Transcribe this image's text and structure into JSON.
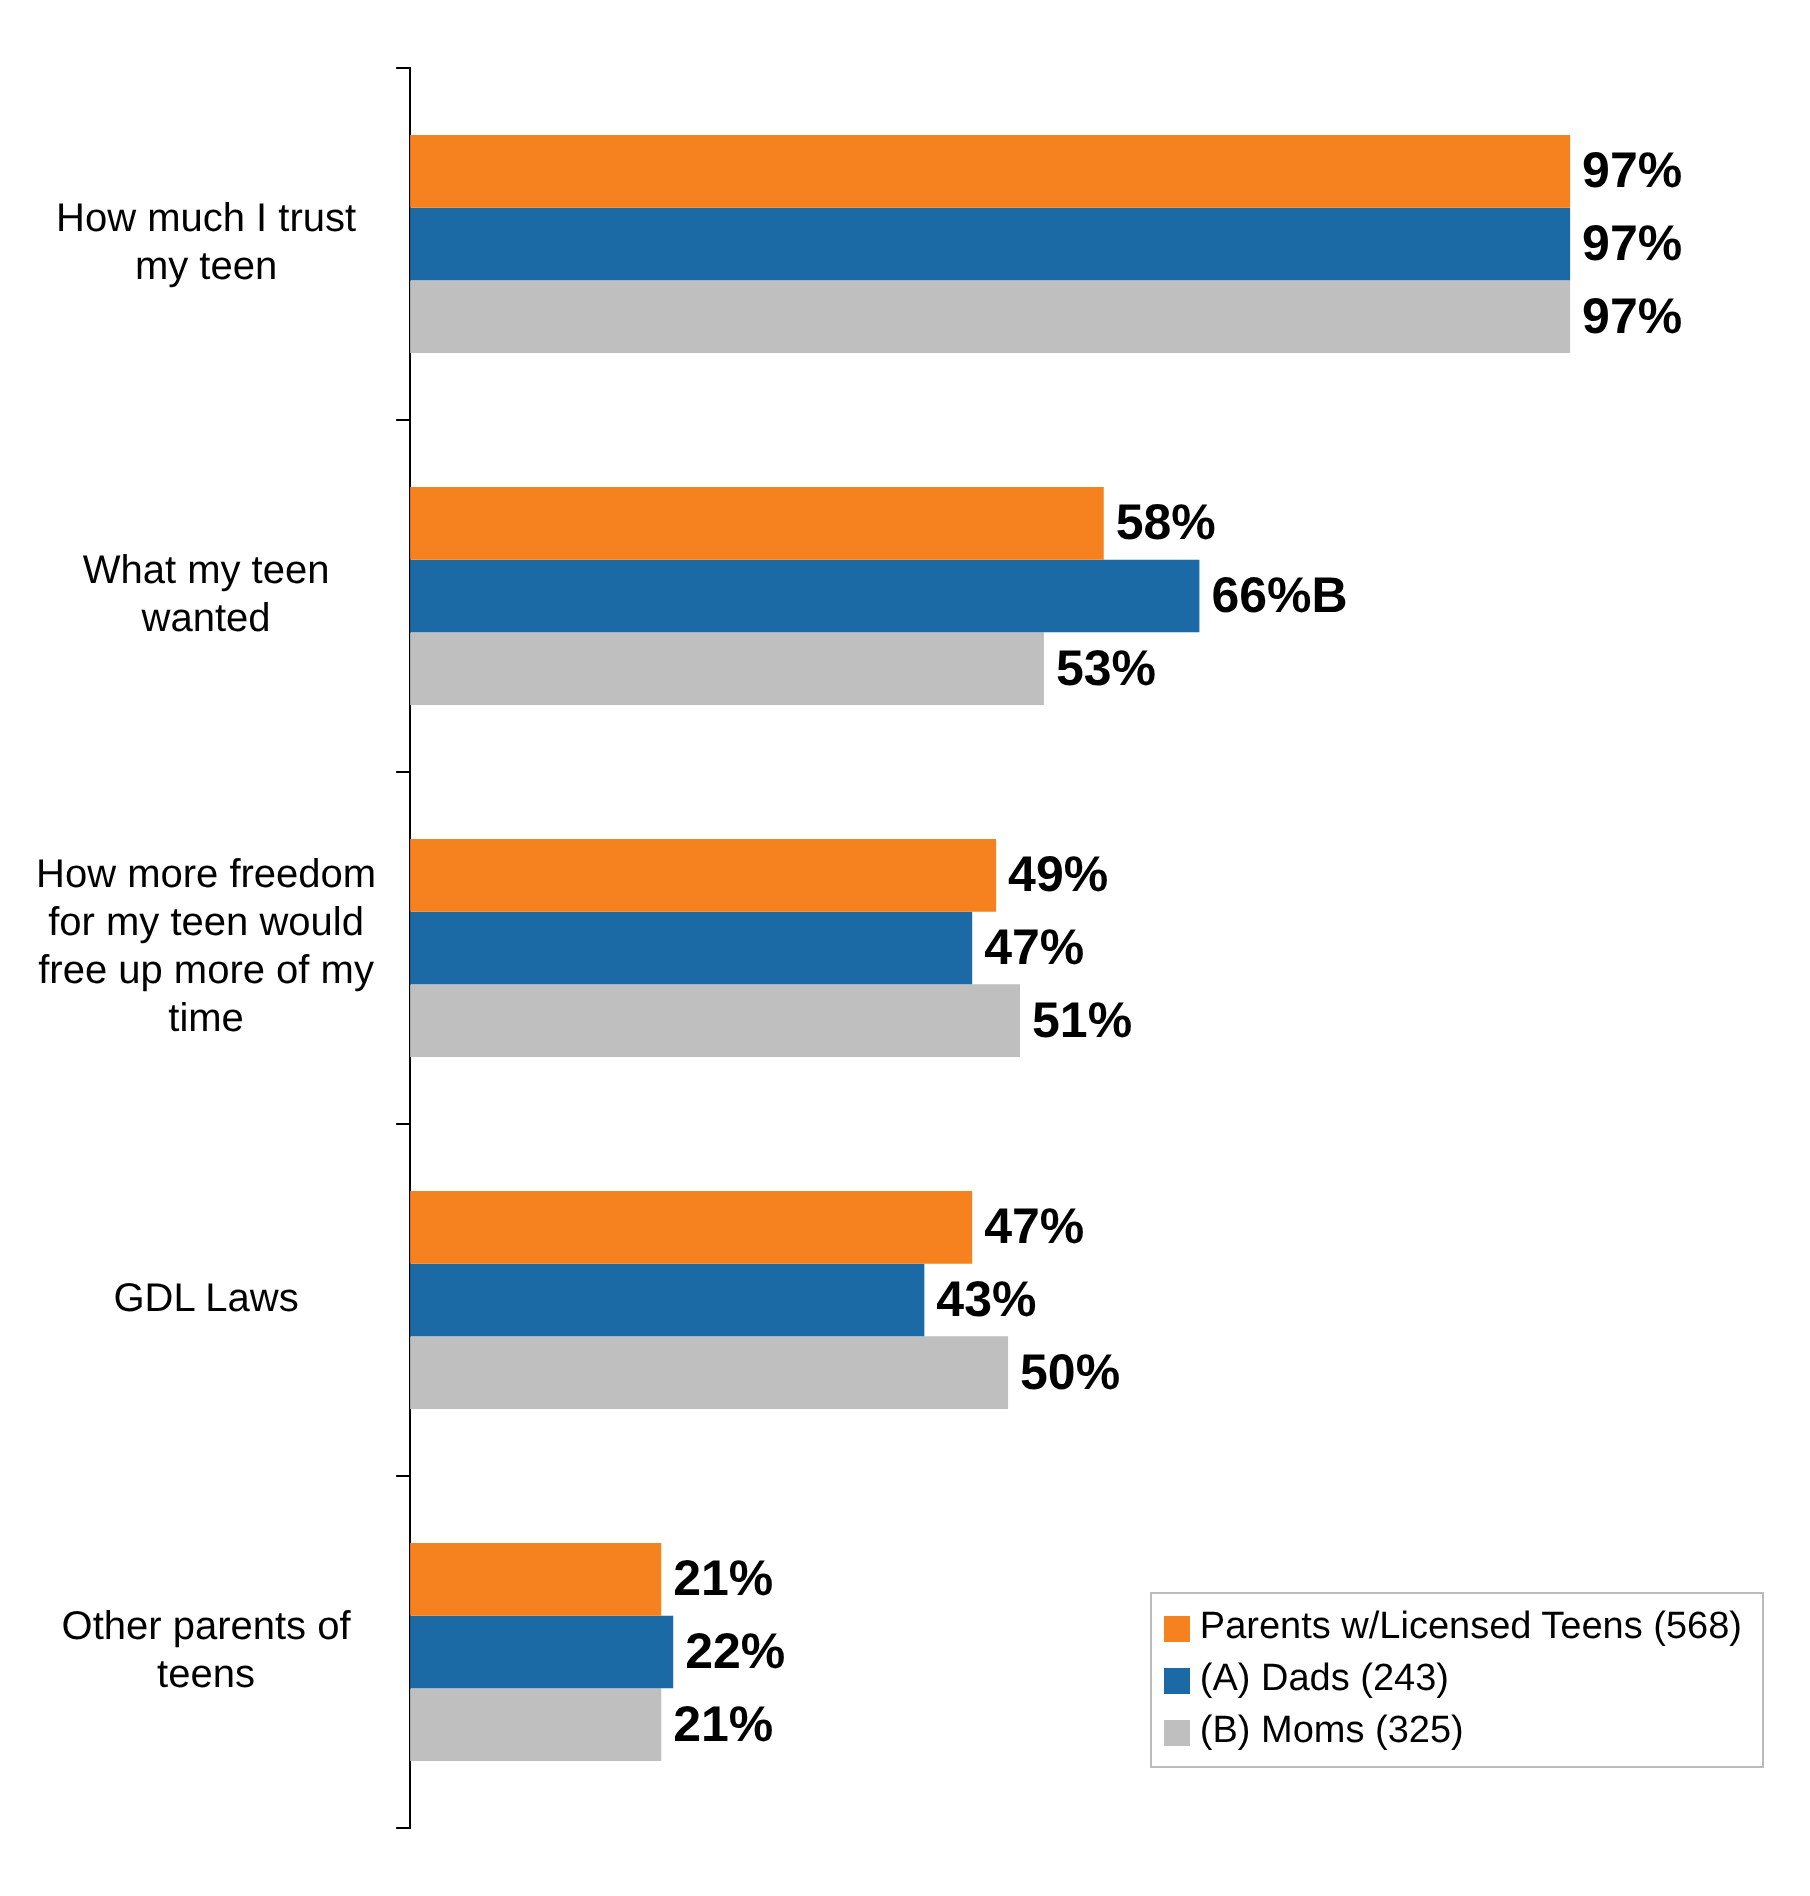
{
  "chart_data": {
    "type": "bar",
    "orientation": "horizontal",
    "categories": [
      "How much I trust my teen",
      "What my teen wanted",
      "How more freedom for my teen would free up more of my time",
      "GDL Laws",
      "Other parents of teens"
    ],
    "series": [
      {
        "name": "Parents w/Licensed Teens (568)",
        "color": "#f5821f",
        "values": [
          97,
          58,
          49,
          47,
          21
        ],
        "value_labels": [
          "97%",
          "58%",
          "49%",
          "47%",
          "21%"
        ]
      },
      {
        "name": "(A) Dads (243)",
        "color": "#1b6aa5",
        "values": [
          97,
          66,
          47,
          43,
          22
        ],
        "value_labels": [
          "97%",
          "66%B",
          "47%",
          "43%",
          "22%"
        ]
      },
      {
        "name": "(B) Moms (325)",
        "color": "#bfbfbf",
        "values": [
          97,
          53,
          51,
          50,
          21
        ],
        "value_labels": [
          "97%",
          "53%",
          "51%",
          "50%",
          "21%"
        ]
      }
    ],
    "legend": "bottom right",
    "grid": false
  }
}
